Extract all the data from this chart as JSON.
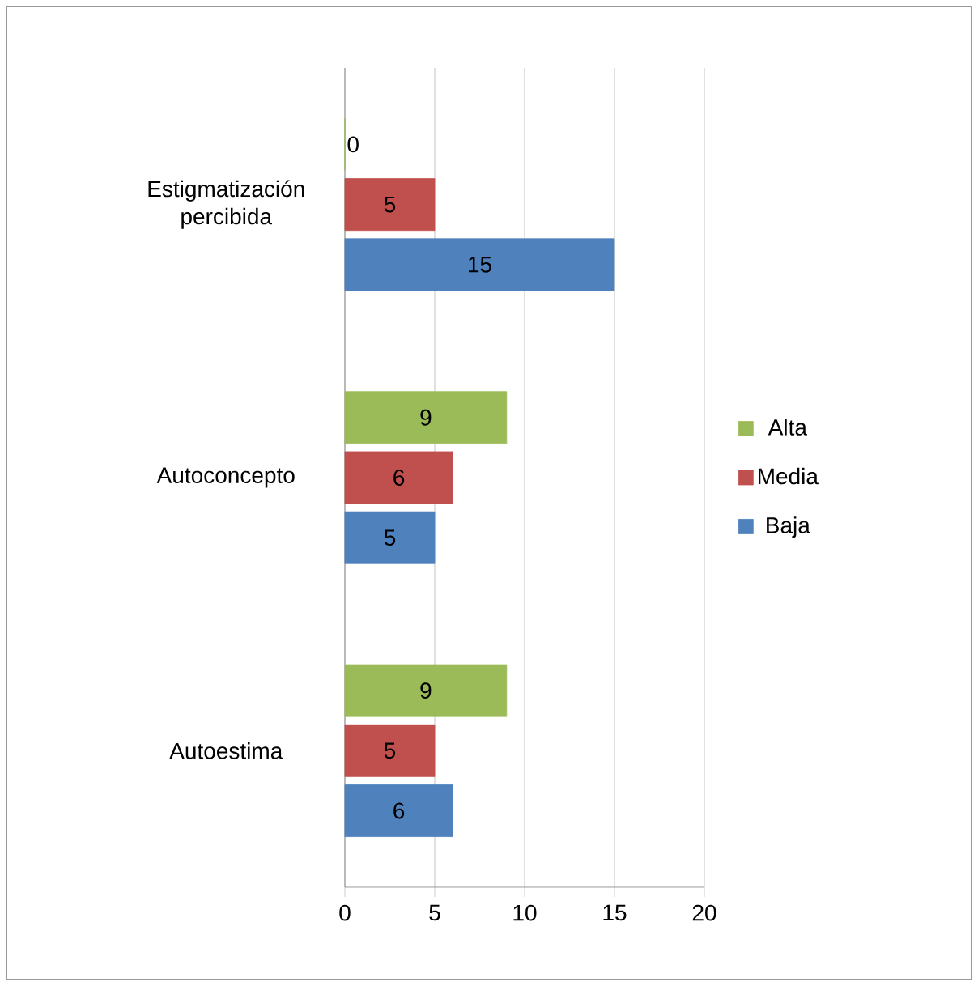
{
  "chart_data": {
    "type": "bar",
    "orientation": "horizontal",
    "categories": [
      "Estigmatización percibida",
      "Autoconcepto",
      "Autoestima"
    ],
    "series": [
      {
        "name": "Baja",
        "color": "#4f81bd",
        "values": [
          15,
          5,
          6
        ]
      },
      {
        "name": "Media",
        "color": "#c0504d",
        "values": [
          5,
          6,
          5
        ]
      },
      {
        "name": "Alta",
        "color": "#9bbb59",
        "values": [
          0,
          9,
          9
        ]
      }
    ],
    "xlim": [
      0,
      20
    ],
    "xticks": [
      0,
      5,
      10,
      15,
      20
    ],
    "grid": "x",
    "legend": "right",
    "data_labels": true
  }
}
